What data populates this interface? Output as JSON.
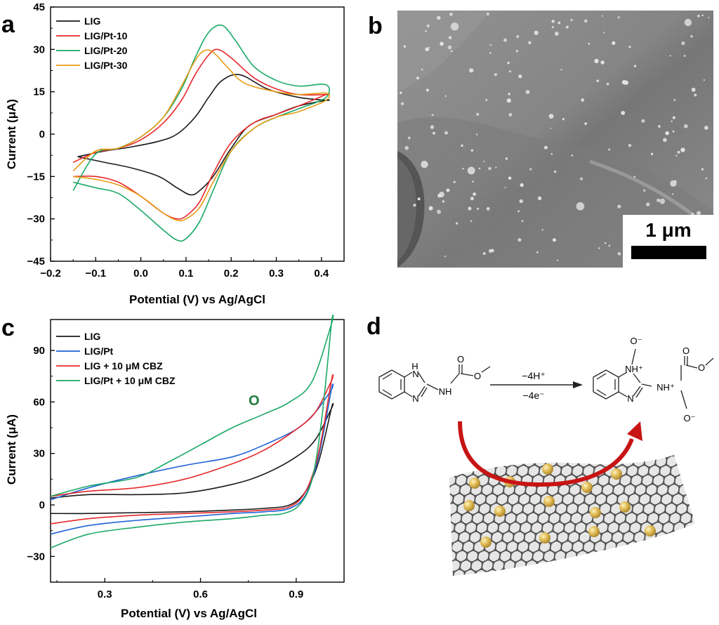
{
  "panels": {
    "a": "a",
    "b": "b",
    "c": "c",
    "d": "d"
  },
  "sem": {
    "scale_bar_label": "1 μm"
  },
  "scheme": {
    "arrow_top": "−4H⁺",
    "arrow_bottom": "−4e⁻",
    "reactant_atoms": {
      "h": "H",
      "n_top": "N",
      "n_bottom": "N",
      "nh": "NH",
      "o_carbonyl": "O",
      "o_ester": "O"
    },
    "product_atoms": {
      "o_minus_top": "O⁻",
      "nh_plus_ring": "NH⁺",
      "n_ring": "N",
      "nh_plus_side": "NH⁺",
      "o_minus_bottom": "O⁻",
      "o_carbonyl": "O",
      "o_ester": "O"
    }
  },
  "colors": {
    "LIG": "#1a1a1a",
    "LIG/Pt-10": "#e8282b",
    "LIG/Pt-20": "#1aa867",
    "LIG/Pt-30": "#e69a12",
    "LIG/Pt": "#1f63d6",
    "LIG + 10 μM CBZ": "#e8282b",
    "LIG/Pt + 10 μM CBZ": "#1aa867",
    "nanoparticle": "#d9b44a",
    "graphene": "#555555",
    "curved_arrow": "#c81414"
  },
  "chart_data": [
    {
      "type": "line",
      "title": "",
      "xlabel": "Potential (V) vs Ag/AgCl",
      "ylabel": "Current (μA)",
      "xlim": [
        -0.2,
        0.45
      ],
      "ylim": [
        -45,
        45
      ],
      "xticks": [
        "−0.2",
        "−0.1",
        "0.0",
        "0.1",
        "0.2",
        "0.3",
        "0.4"
      ],
      "xtick_values": [
        -0.2,
        -0.1,
        0.0,
        0.1,
        0.2,
        0.3,
        0.4
      ],
      "yticks": [
        "−45",
        "−30",
        "−15",
        "0",
        "15",
        "30",
        "45"
      ],
      "ytick_values": [
        -45,
        -30,
        -15,
        0,
        15,
        30,
        45
      ],
      "legend_position": "top-left",
      "series": [
        {
          "name": "LIG",
          "x": [
            -0.14,
            -0.08,
            -0.02,
            0.04,
            0.08,
            0.12,
            0.15,
            0.18,
            0.22,
            0.28,
            0.35,
            0.41,
            0.41,
            0.35,
            0.3,
            0.24,
            0.2,
            0.16,
            0.13,
            0.11,
            0.08,
            0.04,
            -0.02,
            -0.08,
            -0.14
          ],
          "y": [
            -8,
            -6,
            -4.5,
            -2.5,
            0,
            6,
            13,
            19,
            21,
            16,
            13,
            12,
            12,
            10,
            7,
            3,
            -5,
            -15,
            -20,
            -21.5,
            -19,
            -15,
            -12,
            -10,
            -8
          ]
        },
        {
          "name": "LIG/Pt-10",
          "x": [
            -0.15,
            -0.1,
            -0.05,
            0.0,
            0.05,
            0.09,
            0.12,
            0.15,
            0.17,
            0.2,
            0.25,
            0.3,
            0.35,
            0.41,
            0.41,
            0.35,
            0.3,
            0.25,
            0.2,
            0.16,
            0.13,
            0.1,
            0.08,
            0.05,
            0.0,
            -0.05,
            -0.1,
            -0.15
          ],
          "y": [
            -10,
            -6.5,
            -5,
            -2,
            4,
            12,
            21,
            28,
            30,
            27,
            20,
            16,
            14,
            14,
            14,
            10,
            7,
            4,
            -3,
            -14,
            -24,
            -29,
            -30,
            -28,
            -22,
            -17,
            -15,
            -15
          ]
        },
        {
          "name": "LIG/Pt-20",
          "x": [
            -0.15,
            -0.1,
            -0.05,
            0.0,
            0.05,
            0.09,
            0.12,
            0.15,
            0.18,
            0.21,
            0.25,
            0.3,
            0.35,
            0.41,
            0.41,
            0.35,
            0.3,
            0.25,
            0.2,
            0.16,
            0.13,
            0.1,
            0.08,
            0.05,
            0.0,
            -0.05,
            -0.1,
            -0.15
          ],
          "y": [
            -20,
            -7,
            -5,
            -1,
            6,
            16,
            27,
            36,
            38.5,
            33,
            24,
            19,
            17,
            17.5,
            13,
            9,
            6,
            2,
            -6,
            -20,
            -31,
            -37,
            -37.5,
            -34,
            -27,
            -21,
            -19,
            -17
          ]
        },
        {
          "name": "LIG/Pt-30",
          "x": [
            -0.15,
            -0.1,
            -0.05,
            0.0,
            0.05,
            0.09,
            0.12,
            0.14,
            0.16,
            0.19,
            0.23,
            0.3,
            0.35,
            0.41,
            0.41,
            0.35,
            0.3,
            0.25,
            0.2,
            0.16,
            0.13,
            0.1,
            0.08,
            0.05,
            0.0,
            -0.05,
            -0.1,
            -0.15
          ],
          "y": [
            -13,
            -6,
            -5,
            -1,
            6,
            17,
            26,
            29.5,
            29,
            24,
            18,
            15,
            14,
            14.5,
            12,
            8,
            6,
            2,
            -6,
            -17,
            -26,
            -30,
            -30.5,
            -28,
            -22,
            -18,
            -16,
            -15
          ]
        }
      ]
    },
    {
      "type": "line",
      "title": "",
      "xlabel": "Potential (V) vs Ag/AgCl",
      "ylabel": "Current (μA)",
      "xlim": [
        0.13,
        1.05
      ],
      "ylim": [
        -45,
        108
      ],
      "xticks": [
        "0.3",
        "0.6",
        "0.9"
      ],
      "xtick_values": [
        0.3,
        0.6,
        0.9
      ],
      "yticks": [
        "−30",
        "0",
        "30",
        "60",
        "90"
      ],
      "ytick_values": [
        -30,
        0,
        30,
        60,
        90
      ],
      "legend_position": "top-left",
      "annotations": [
        "O"
      ],
      "series": [
        {
          "name": "LIG",
          "x": [
            0.13,
            0.25,
            0.4,
            0.55,
            0.7,
            0.8,
            0.9,
            0.96,
            1.01,
            1.01,
            0.97,
            0.93,
            0.88,
            0.8,
            0.7,
            0.55,
            0.4,
            0.25,
            0.13
          ],
          "y": [
            4,
            6,
            6,
            7,
            12,
            18,
            28,
            38,
            56,
            56,
            25,
            8,
            0,
            -2,
            -3,
            -4,
            -4.5,
            -5,
            -5
          ]
        },
        {
          "name": "LIG/Pt",
          "x": [
            0.13,
            0.25,
            0.4,
            0.55,
            0.7,
            0.8,
            0.9,
            0.96,
            1.01,
            1.01,
            0.97,
            0.93,
            0.88,
            0.8,
            0.7,
            0.55,
            0.4,
            0.25,
            0.13
          ],
          "y": [
            3,
            10,
            17,
            23,
            28,
            35,
            44,
            54,
            67,
            67,
            28,
            6,
            -2,
            -4,
            -5,
            -7,
            -9,
            -12,
            -17
          ]
        },
        {
          "name": "LIG + 10 μM CBZ",
          "x": [
            0.13,
            0.25,
            0.4,
            0.55,
            0.7,
            0.8,
            0.9,
            0.96,
            1.01,
            1.01,
            0.97,
            0.93,
            0.88,
            0.8,
            0.7,
            0.55,
            0.4,
            0.25,
            0.13
          ],
          "y": [
            5,
            8,
            10,
            15,
            24,
            32,
            44,
            54,
            72,
            72,
            30,
            8,
            -1,
            -3,
            -4,
            -5,
            -6,
            -8,
            -11
          ]
        },
        {
          "name": "LIG/Pt + 10 μM CBZ",
          "x": [
            0.13,
            0.25,
            0.4,
            0.5,
            0.6,
            0.7,
            0.8,
            0.88,
            0.95,
            1.01,
            1.01,
            0.98,
            0.95,
            0.91,
            0.86,
            0.8,
            0.7,
            0.55,
            0.4,
            0.25,
            0.13
          ],
          "y": [
            5,
            11,
            16,
            25,
            35,
            45,
            53,
            60,
            72,
            105,
            105,
            50,
            15,
            0,
            -5,
            -6,
            -8,
            -10,
            -13,
            -17,
            -25
          ]
        }
      ]
    }
  ]
}
